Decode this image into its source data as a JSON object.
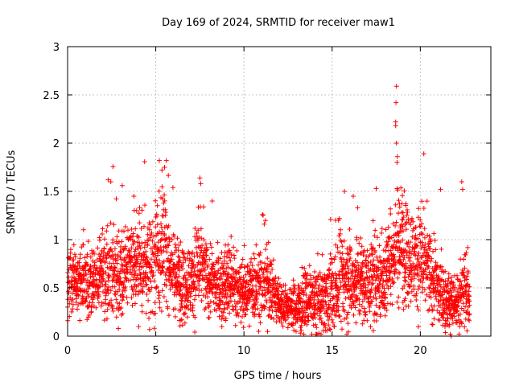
{
  "chart_data": {
    "type": "scatter",
    "title": "Day 169 of 2024, SRMTID for receiver maw1",
    "xlabel": "GPS time / hours",
    "ylabel": "SRMTID / TECUs",
    "xlim": [
      0,
      24
    ],
    "ylim": [
      0,
      3
    ],
    "x_ticks": [
      0,
      5,
      10,
      15,
      20
    ],
    "y_ticks": [
      0,
      0.5,
      1,
      1.5,
      2,
      2.5,
      3
    ],
    "x_tick_labels": [
      "0",
      "5",
      "10",
      "15",
      "20"
    ],
    "y_tick_labels": [
      "0",
      "0.5",
      "1",
      "1.5",
      "2",
      "2.5",
      "3"
    ],
    "grid": true,
    "marker": "+",
    "marker_color": "#ff0000",
    "envelope": {
      "description": "approximate median and spread of SRMTID vs hour (hours, median, spread)",
      "hours": [
        0.0,
        0.5,
        1.0,
        1.5,
        2.0,
        2.5,
        3.0,
        3.5,
        4.0,
        4.5,
        5.0,
        5.5,
        6.0,
        6.5,
        7.0,
        7.5,
        8.0,
        8.5,
        9.0,
        9.5,
        10.0,
        10.5,
        11.0,
        11.5,
        12.0,
        12.5,
        13.0,
        13.5,
        14.0,
        14.5,
        15.0,
        15.5,
        16.0,
        16.5,
        17.0,
        17.5,
        18.0,
        18.5,
        19.0,
        19.5,
        20.0,
        20.5,
        21.0,
        21.5,
        22.0,
        22.5,
        22.8
      ],
      "median": [
        0.55,
        0.6,
        0.58,
        0.55,
        0.62,
        0.7,
        0.65,
        0.72,
        0.75,
        0.7,
        0.85,
        0.9,
        0.65,
        0.55,
        0.6,
        0.75,
        0.55,
        0.5,
        0.5,
        0.55,
        0.45,
        0.5,
        0.55,
        0.5,
        0.35,
        0.3,
        0.3,
        0.35,
        0.35,
        0.35,
        0.45,
        0.6,
        0.55,
        0.6,
        0.55,
        0.6,
        0.6,
        0.9,
        0.95,
        0.85,
        0.8,
        0.65,
        0.45,
        0.35,
        0.3,
        0.55,
        0.35
      ],
      "spread": [
        0.35,
        0.3,
        0.3,
        0.3,
        0.35,
        0.45,
        0.45,
        0.4,
        0.4,
        0.45,
        0.55,
        0.5,
        0.35,
        0.35,
        0.35,
        0.45,
        0.3,
        0.3,
        0.35,
        0.3,
        0.3,
        0.3,
        0.35,
        0.3,
        0.2,
        0.2,
        0.25,
        0.3,
        0.3,
        0.3,
        0.35,
        0.45,
        0.4,
        0.4,
        0.35,
        0.4,
        0.45,
        0.55,
        0.5,
        0.45,
        0.45,
        0.4,
        0.35,
        0.25,
        0.2,
        0.4,
        0.25
      ]
    },
    "notable_points": [
      {
        "x": 18.65,
        "y": 2.59
      },
      {
        "x": 18.62,
        "y": 2.42
      },
      {
        "x": 18.6,
        "y": 2.22
      },
      {
        "x": 18.6,
        "y": 2.18
      },
      {
        "x": 18.7,
        "y": 1.86
      },
      {
        "x": 18.68,
        "y": 1.8
      },
      {
        "x": 20.2,
        "y": 1.89
      },
      {
        "x": 5.2,
        "y": 1.82
      },
      {
        "x": 5.6,
        "y": 1.82
      },
      {
        "x": 5.5,
        "y": 1.75
      },
      {
        "x": 5.35,
        "y": 1.72
      },
      {
        "x": 2.3,
        "y": 1.62
      },
      {
        "x": 2.45,
        "y": 1.6
      },
      {
        "x": 7.5,
        "y": 1.64
      },
      {
        "x": 7.55,
        "y": 1.58
      },
      {
        "x": 22.35,
        "y": 1.6
      },
      {
        "x": 22.4,
        "y": 1.52
      },
      {
        "x": 3.1,
        "y": 1.56
      },
      {
        "x": 8.2,
        "y": 1.4
      },
      {
        "x": 15.7,
        "y": 1.5
      },
      {
        "x": 17.5,
        "y": 1.53
      },
      {
        "x": 21.15,
        "y": 1.52
      },
      {
        "x": 16.2,
        "y": 1.45
      },
      {
        "x": 11.15,
        "y": 1.16
      },
      {
        "x": 21.75,
        "y": 0.0
      },
      {
        "x": 21.7,
        "y": 0.02
      }
    ]
  }
}
